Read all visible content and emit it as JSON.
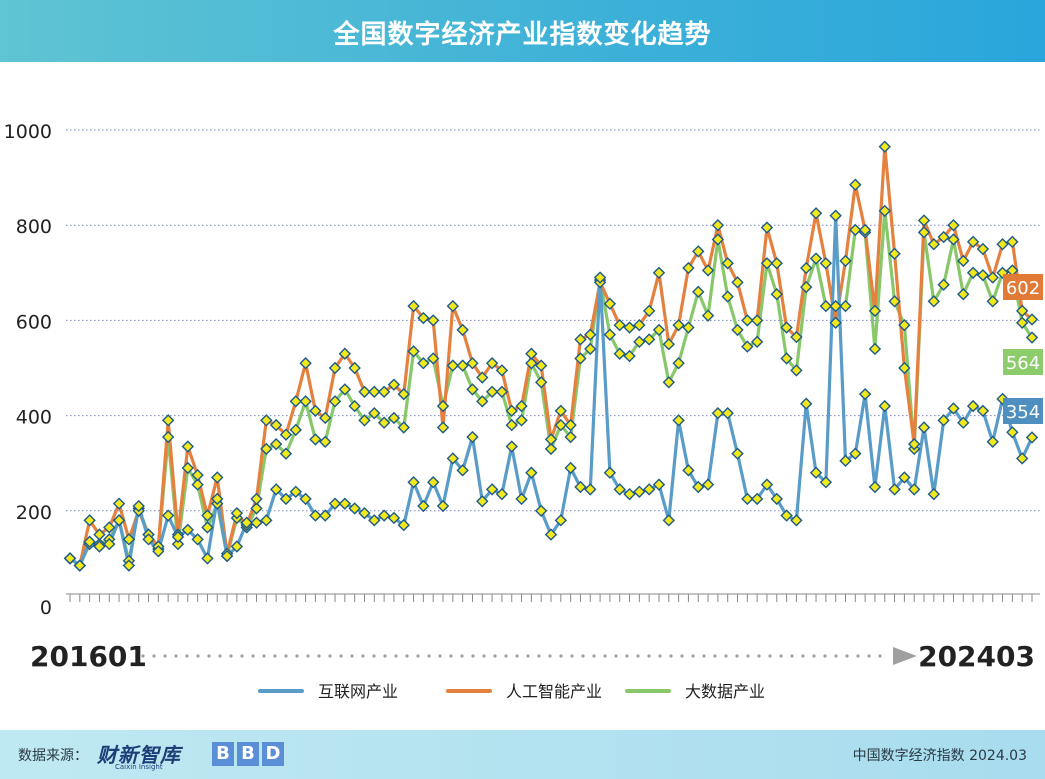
{
  "header": {
    "title": "全国数字经济产业指数变化趋势"
  },
  "footer": {
    "source_label": "数据来源：",
    "logo_text": "财新智库",
    "logo_sub": "Caixin Insight",
    "logo_bbd": [
      "B",
      "B",
      "D"
    ],
    "right_note": "中国数字经济指数 2024.03"
  },
  "chart_data": {
    "type": "line",
    "title": "全国数字经济产业指数变化趋势",
    "x_start_label": "201601",
    "x_end_label": "202403",
    "ylim": [
      0,
      1000
    ],
    "yticks": [
      "0",
      "200",
      "400",
      "600",
      "800",
      "1000"
    ],
    "grid": true,
    "legend_position": "bottom",
    "marker_color": "#f3e81b",
    "marker_edge": "#1d5a8c",
    "series": [
      {
        "name": "互联网产业",
        "color": "#5a9cc8",
        "end_label": "354",
        "values": [
          100,
          85,
          135,
          125,
          130,
          180,
          85,
          210,
          140,
          115,
          190,
          145,
          160,
          140,
          100,
          225,
          105,
          125,
          175,
          175,
          180,
          245,
          225,
          240,
          225,
          190,
          190,
          215,
          215,
          205,
          195,
          180,
          190,
          185,
          170,
          260,
          210,
          260,
          210,
          310,
          285,
          355,
          220,
          245,
          235,
          335,
          225,
          280,
          200,
          150,
          180,
          290,
          250,
          245,
          690,
          280,
          245,
          235,
          240,
          245,
          255,
          180,
          390,
          285,
          250,
          255,
          405,
          405,
          320,
          225,
          225,
          255,
          225,
          190,
          180,
          425,
          280,
          260,
          820,
          305,
          320,
          445,
          250,
          420,
          245,
          270,
          245,
          375,
          235,
          390,
          415,
          385,
          420,
          410,
          345,
          435,
          365,
          310,
          354
        ]
      },
      {
        "name": "人工智能产业",
        "color": "#e5813f",
        "end_label": "602",
        "values": [
          100,
          85,
          180,
          150,
          165,
          215,
          140,
          200,
          150,
          125,
          390,
          150,
          335,
          275,
          190,
          270,
          110,
          195,
          170,
          225,
          390,
          380,
          360,
          430,
          510,
          410,
          395,
          500,
          530,
          500,
          450,
          450,
          450,
          465,
          445,
          630,
          605,
          600,
          375,
          630,
          580,
          510,
          480,
          510,
          495,
          410,
          420,
          530,
          505,
          350,
          410,
          380,
          560,
          570,
          680,
          635,
          590,
          585,
          590,
          620,
          700,
          550,
          590,
          710,
          745,
          705,
          800,
          720,
          680,
          600,
          600,
          795,
          720,
          585,
          565,
          710,
          825,
          720,
          595,
          725,
          885,
          790,
          620,
          965,
          740,
          500,
          340,
          810,
          760,
          775,
          800,
          725,
          765,
          750,
          690,
          760,
          765,
          620,
          602
        ]
      },
      {
        "name": "大数据产业",
        "color": "#88c86a",
        "end_label": "564",
        "values": [
          100,
          85,
          130,
          130,
          140,
          180,
          95,
          205,
          150,
          120,
          355,
          130,
          290,
          255,
          165,
          215,
          105,
          185,
          165,
          205,
          330,
          340,
          320,
          370,
          430,
          350,
          345,
          430,
          455,
          420,
          390,
          405,
          385,
          395,
          375,
          535,
          510,
          520,
          420,
          505,
          505,
          455,
          430,
          450,
          450,
          380,
          390,
          510,
          470,
          330,
          380,
          355,
          520,
          540,
          685,
          570,
          530,
          525,
          555,
          560,
          580,
          470,
          510,
          585,
          660,
          610,
          770,
          650,
          580,
          545,
          555,
          720,
          655,
          520,
          495,
          670,
          730,
          630,
          630,
          630,
          790,
          785,
          540,
          830,
          640,
          590,
          330,
          785,
          640,
          675,
          770,
          655,
          700,
          695,
          640,
          700,
          705,
          595,
          564
        ]
      }
    ]
  }
}
